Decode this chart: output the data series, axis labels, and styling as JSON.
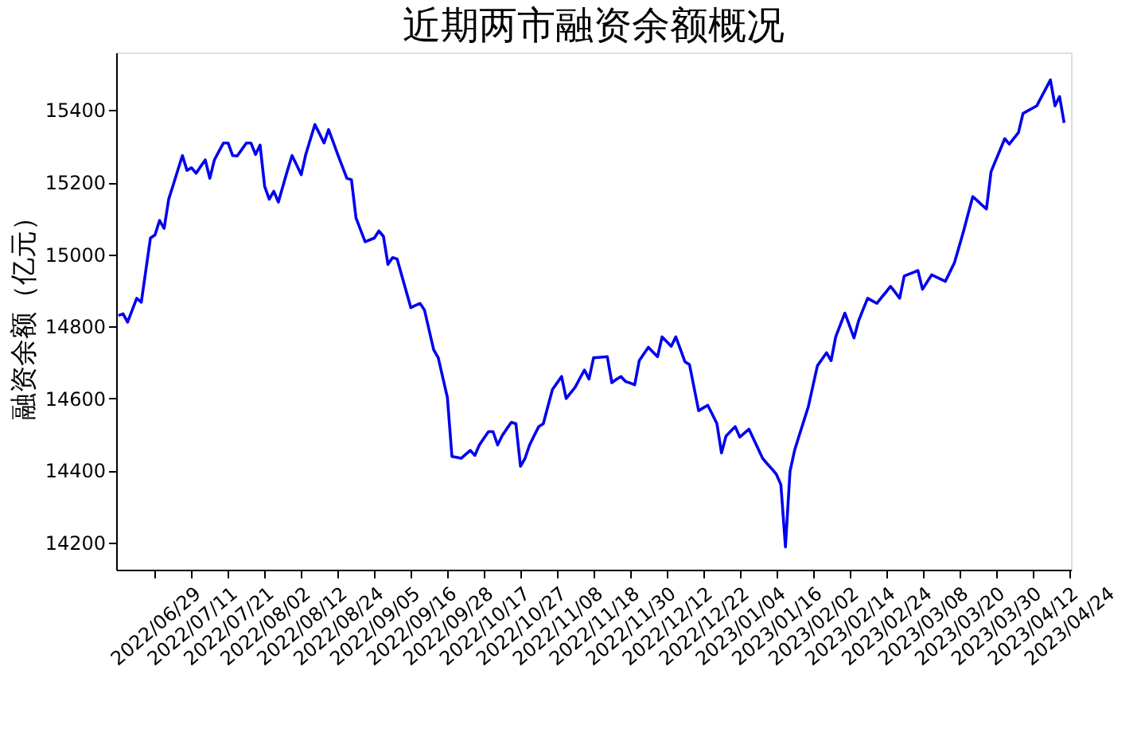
{
  "chart_data": {
    "type": "line",
    "title": "近期两市融资余额概况",
    "ylabel": "融资余额（亿元）",
    "categories": [
      null,
      null,
      null,
      null,
      null,
      null,
      null,
      null,
      "2022/06/29",
      null,
      null,
      null,
      null,
      null,
      null,
      null,
      "2022/07/11",
      null,
      null,
      null,
      null,
      null,
      null,
      null,
      "2022/07/21",
      null,
      null,
      null,
      null,
      null,
      null,
      null,
      "2022/08/02",
      null,
      null,
      null,
      null,
      null,
      null,
      null,
      "2022/08/12",
      null,
      null,
      null,
      null,
      null,
      null,
      null,
      "2022/08/24",
      null,
      null,
      null,
      null,
      null,
      null,
      null,
      "2022/09/05",
      null,
      null,
      null,
      null,
      null,
      null,
      null,
      "2022/09/16",
      null,
      null,
      null,
      null,
      null,
      null,
      null,
      "2022/09/28",
      null,
      null,
      null,
      null,
      null,
      null,
      null,
      "2022/10/17",
      null,
      null,
      null,
      null,
      null,
      null,
      null,
      "2022/10/27",
      null,
      null,
      null,
      null,
      null,
      null,
      null,
      "2022/11/08",
      null,
      null,
      null,
      null,
      null,
      null,
      null,
      "2022/11/18",
      null,
      null,
      null,
      null,
      null,
      null,
      null,
      "2022/11/30",
      null,
      null,
      null,
      null,
      null,
      null,
      null,
      "2022/12/12",
      null,
      null,
      null,
      null,
      null,
      null,
      null,
      "2022/12/22",
      null,
      null,
      null,
      null,
      null,
      null,
      null,
      "2023/01/04",
      null,
      null,
      null,
      null,
      null,
      null,
      null,
      "2023/01/16",
      null,
      null,
      null,
      null,
      null,
      null,
      null,
      "2023/02/02",
      null,
      null,
      null,
      null,
      null,
      null,
      null,
      "2023/02/14",
      null,
      null,
      null,
      null,
      null,
      null,
      null,
      "2023/02/24",
      null,
      null,
      null,
      null,
      null,
      null,
      null,
      "2023/03/08",
      null,
      null,
      null,
      null,
      null,
      null,
      null,
      "2023/03/20",
      null,
      null,
      null,
      null,
      null,
      null,
      null,
      "2023/03/30",
      null,
      null,
      null,
      null,
      null,
      null,
      null,
      "2023/04/12",
      null,
      null,
      null,
      null,
      null,
      null,
      null,
      "2023/04/24"
    ],
    "series": [
      {
        "color": "#0000ee",
        "values": [
          14830,
          14835,
          14812,
          14845,
          14878,
          14867,
          14956,
          15045,
          15054,
          15094,
          15072,
          15153,
          15193,
          15234,
          15274,
          15233,
          15240,
          15225,
          15244,
          15262,
          15211,
          15262,
          15286,
          15309,
          15309,
          15274,
          15273,
          15291,
          15309,
          15309,
          15277,
          15303,
          15189,
          15153,
          15175,
          15145,
          15189,
          15233,
          15274,
          15248,
          15221,
          15277,
          15319,
          15360,
          15335,
          15309,
          15346,
          15312,
          15277,
          15244,
          15211,
          15207,
          15101,
          15068,
          15035,
          15040,
          15045,
          15065,
          15050,
          14972,
          14991,
          14987,
          14942,
          14897,
          14852,
          14858,
          14864,
          14845,
          14790,
          14735,
          14713,
          14658,
          14603,
          14439,
          14437,
          14434,
          14445,
          14456,
          14442,
          14471,
          14490,
          14508,
          14508,
          14471,
          14497,
          14516,
          14534,
          14530,
          14412,
          14434,
          14471,
          14497,
          14522,
          14530,
          14578,
          14625,
          14643,
          14661,
          14600,
          14616,
          14632,
          14656,
          14679,
          14654,
          14713,
          14714,
          14715,
          14716,
          14644,
          14653,
          14661,
          14647,
          14643,
          14638,
          14705,
          14724,
          14742,
          14729,
          14716,
          14771,
          14758,
          14745,
          14771,
          14737,
          14702,
          14694,
          14630,
          14566,
          14574,
          14581,
          14556,
          14530,
          14449,
          14496,
          14509,
          14522,
          14493,
          14504,
          14515,
          14488,
          14461,
          14434,
          14419,
          14405,
          14390,
          14361,
          14188,
          14398,
          14456,
          14497,
          14537,
          14577,
          14634,
          14691,
          14709,
          14727,
          14705,
          14771,
          14804,
          14837,
          14803,
          14768,
          14815,
          14847,
          14878,
          14871,
          14864,
          14880,
          14895,
          14911,
          14895,
          14878,
          14940,
          14945,
          14950,
          14955,
          14903,
          14923,
          14943,
          14937,
          14931,
          14925,
          14951,
          14977,
          15021,
          15065,
          15113,
          15160,
          15149,
          15137,
          15126,
          15229,
          15260,
          15290,
          15321,
          15306,
          15322,
          15338,
          15391,
          15398,
          15405,
          15412,
          15436,
          15460,
          15484,
          15412,
          15438,
          15365,
          null
        ]
      }
    ],
    "ylim": [
      14125,
      15560
    ],
    "yticks": [
      14200,
      14400,
      14600,
      14800,
      15000,
      15200,
      15400
    ],
    "grid": false,
    "marker": "none",
    "line_style": "solid"
  }
}
